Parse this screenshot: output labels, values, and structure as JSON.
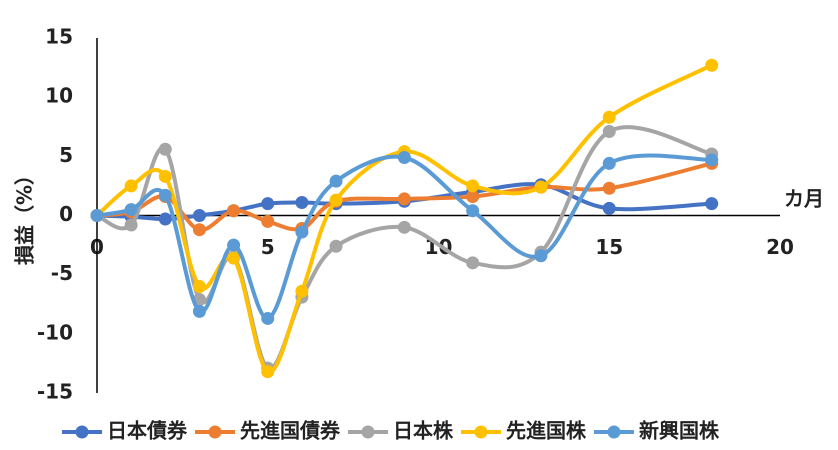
{
  "chart_data": {
    "type": "line",
    "smooth": true,
    "y_label": "損益（%）",
    "x_label": "カ月",
    "x": [
      0,
      1,
      2,
      3,
      4,
      5,
      6,
      7,
      9,
      11,
      13,
      15,
      18
    ],
    "xlim": [
      0,
      20
    ],
    "xticks": [
      0,
      5,
      10,
      15,
      20
    ],
    "ylim": [
      -15,
      15
    ],
    "yticks": [
      -15,
      -10,
      -5,
      0,
      5,
      10,
      15
    ],
    "grid": false,
    "legend": "bottom",
    "series": [
      {
        "name": "日本債券",
        "color": "#4472c4",
        "values": [
          0,
          -0.1,
          -0.3,
          0,
          0.4,
          1.0,
          1.1,
          1.0,
          1.2,
          2.0,
          2.6,
          0.6,
          1.0
        ]
      },
      {
        "name": "先進国債券",
        "color": "#ed7d31",
        "values": [
          0,
          0.3,
          1.6,
          -1.2,
          0.4,
          -0.5,
          -1.1,
          1.2,
          1.4,
          1.6,
          2.4,
          2.3,
          4.4
        ]
      },
      {
        "name": "日本株",
        "color": "#a5a5a5",
        "values": [
          0,
          -0.8,
          5.6,
          -7.1,
          -3.5,
          -12.9,
          -6.9,
          -2.6,
          -1.0,
          -4.0,
          -3.1,
          7.1,
          5.2
        ]
      },
      {
        "name": "先進国株",
        "color": "#ffc000",
        "values": [
          0,
          2.5,
          3.3,
          -6.0,
          -3.6,
          -13.2,
          -6.4,
          1.3,
          5.4,
          2.5,
          2.4,
          8.3,
          12.7
        ]
      },
      {
        "name": "新興国株",
        "color": "#5b9bd5",
        "values": [
          0,
          0.5,
          1.7,
          -8.1,
          -2.5,
          -8.7,
          -1.4,
          2.9,
          4.9,
          0.4,
          -3.4,
          4.4,
          4.7
        ]
      }
    ]
  }
}
